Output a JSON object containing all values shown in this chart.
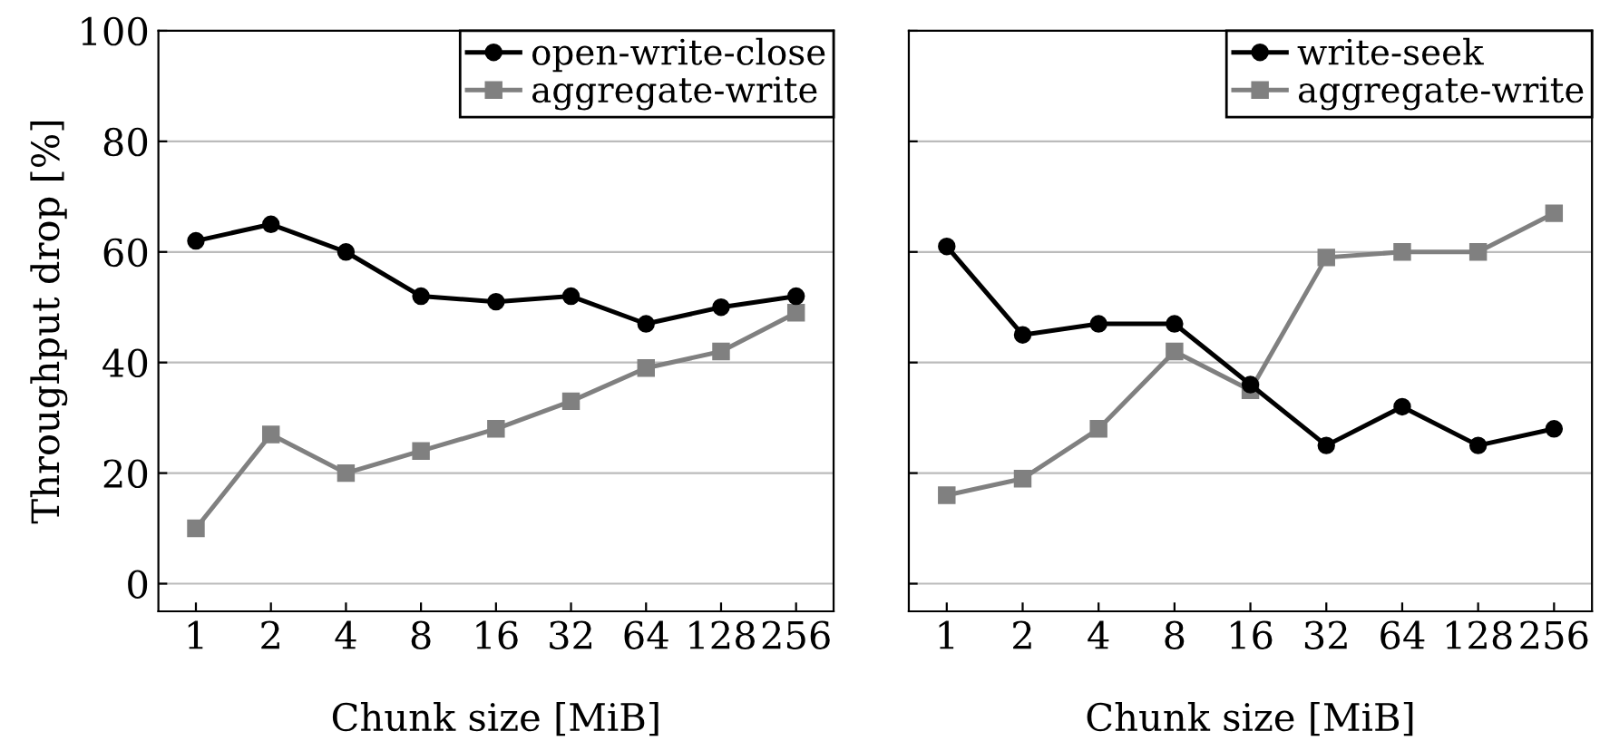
{
  "chart_data": [
    {
      "type": "line",
      "xlabel": "Chunk size [MiB]",
      "ylabel": "Throughput drop [%]",
      "categories": [
        "1",
        "2",
        "4",
        "8",
        "16",
        "32",
        "64",
        "128",
        "256"
      ],
      "ylim": [
        -5,
        100
      ],
      "yticks": [
        0,
        20,
        40,
        60,
        80,
        100
      ],
      "grid": "y",
      "legend": "top right",
      "series": [
        {
          "name": "open-write-close",
          "color": "#000000",
          "marker": "circle",
          "values": [
            62,
            65,
            60,
            52,
            51,
            52,
            47,
            50,
            52
          ]
        },
        {
          "name": "aggregate-write",
          "color": "#808080",
          "marker": "square",
          "values": [
            10,
            27,
            20,
            24,
            28,
            33,
            39,
            42,
            49
          ]
        }
      ]
    },
    {
      "type": "line",
      "xlabel": "Chunk size [MiB]",
      "categories": [
        "1",
        "2",
        "4",
        "8",
        "16",
        "32",
        "64",
        "128",
        "256"
      ],
      "ylim": [
        -5,
        100
      ],
      "yticks": [
        0,
        20,
        40,
        60,
        80,
        100
      ],
      "grid": "y",
      "legend": "top right",
      "tick_labels": "x",
      "series": [
        {
          "name": "write-seek",
          "color": "#000000",
          "marker": "circle",
          "values": [
            61,
            45,
            47,
            47,
            36,
            25,
            32,
            25,
            28
          ]
        },
        {
          "name": "aggregate-write",
          "color": "#808080",
          "marker": "square",
          "values": [
            16,
            19,
            28,
            42,
            35,
            59,
            60,
            60,
            67
          ]
        }
      ]
    }
  ]
}
